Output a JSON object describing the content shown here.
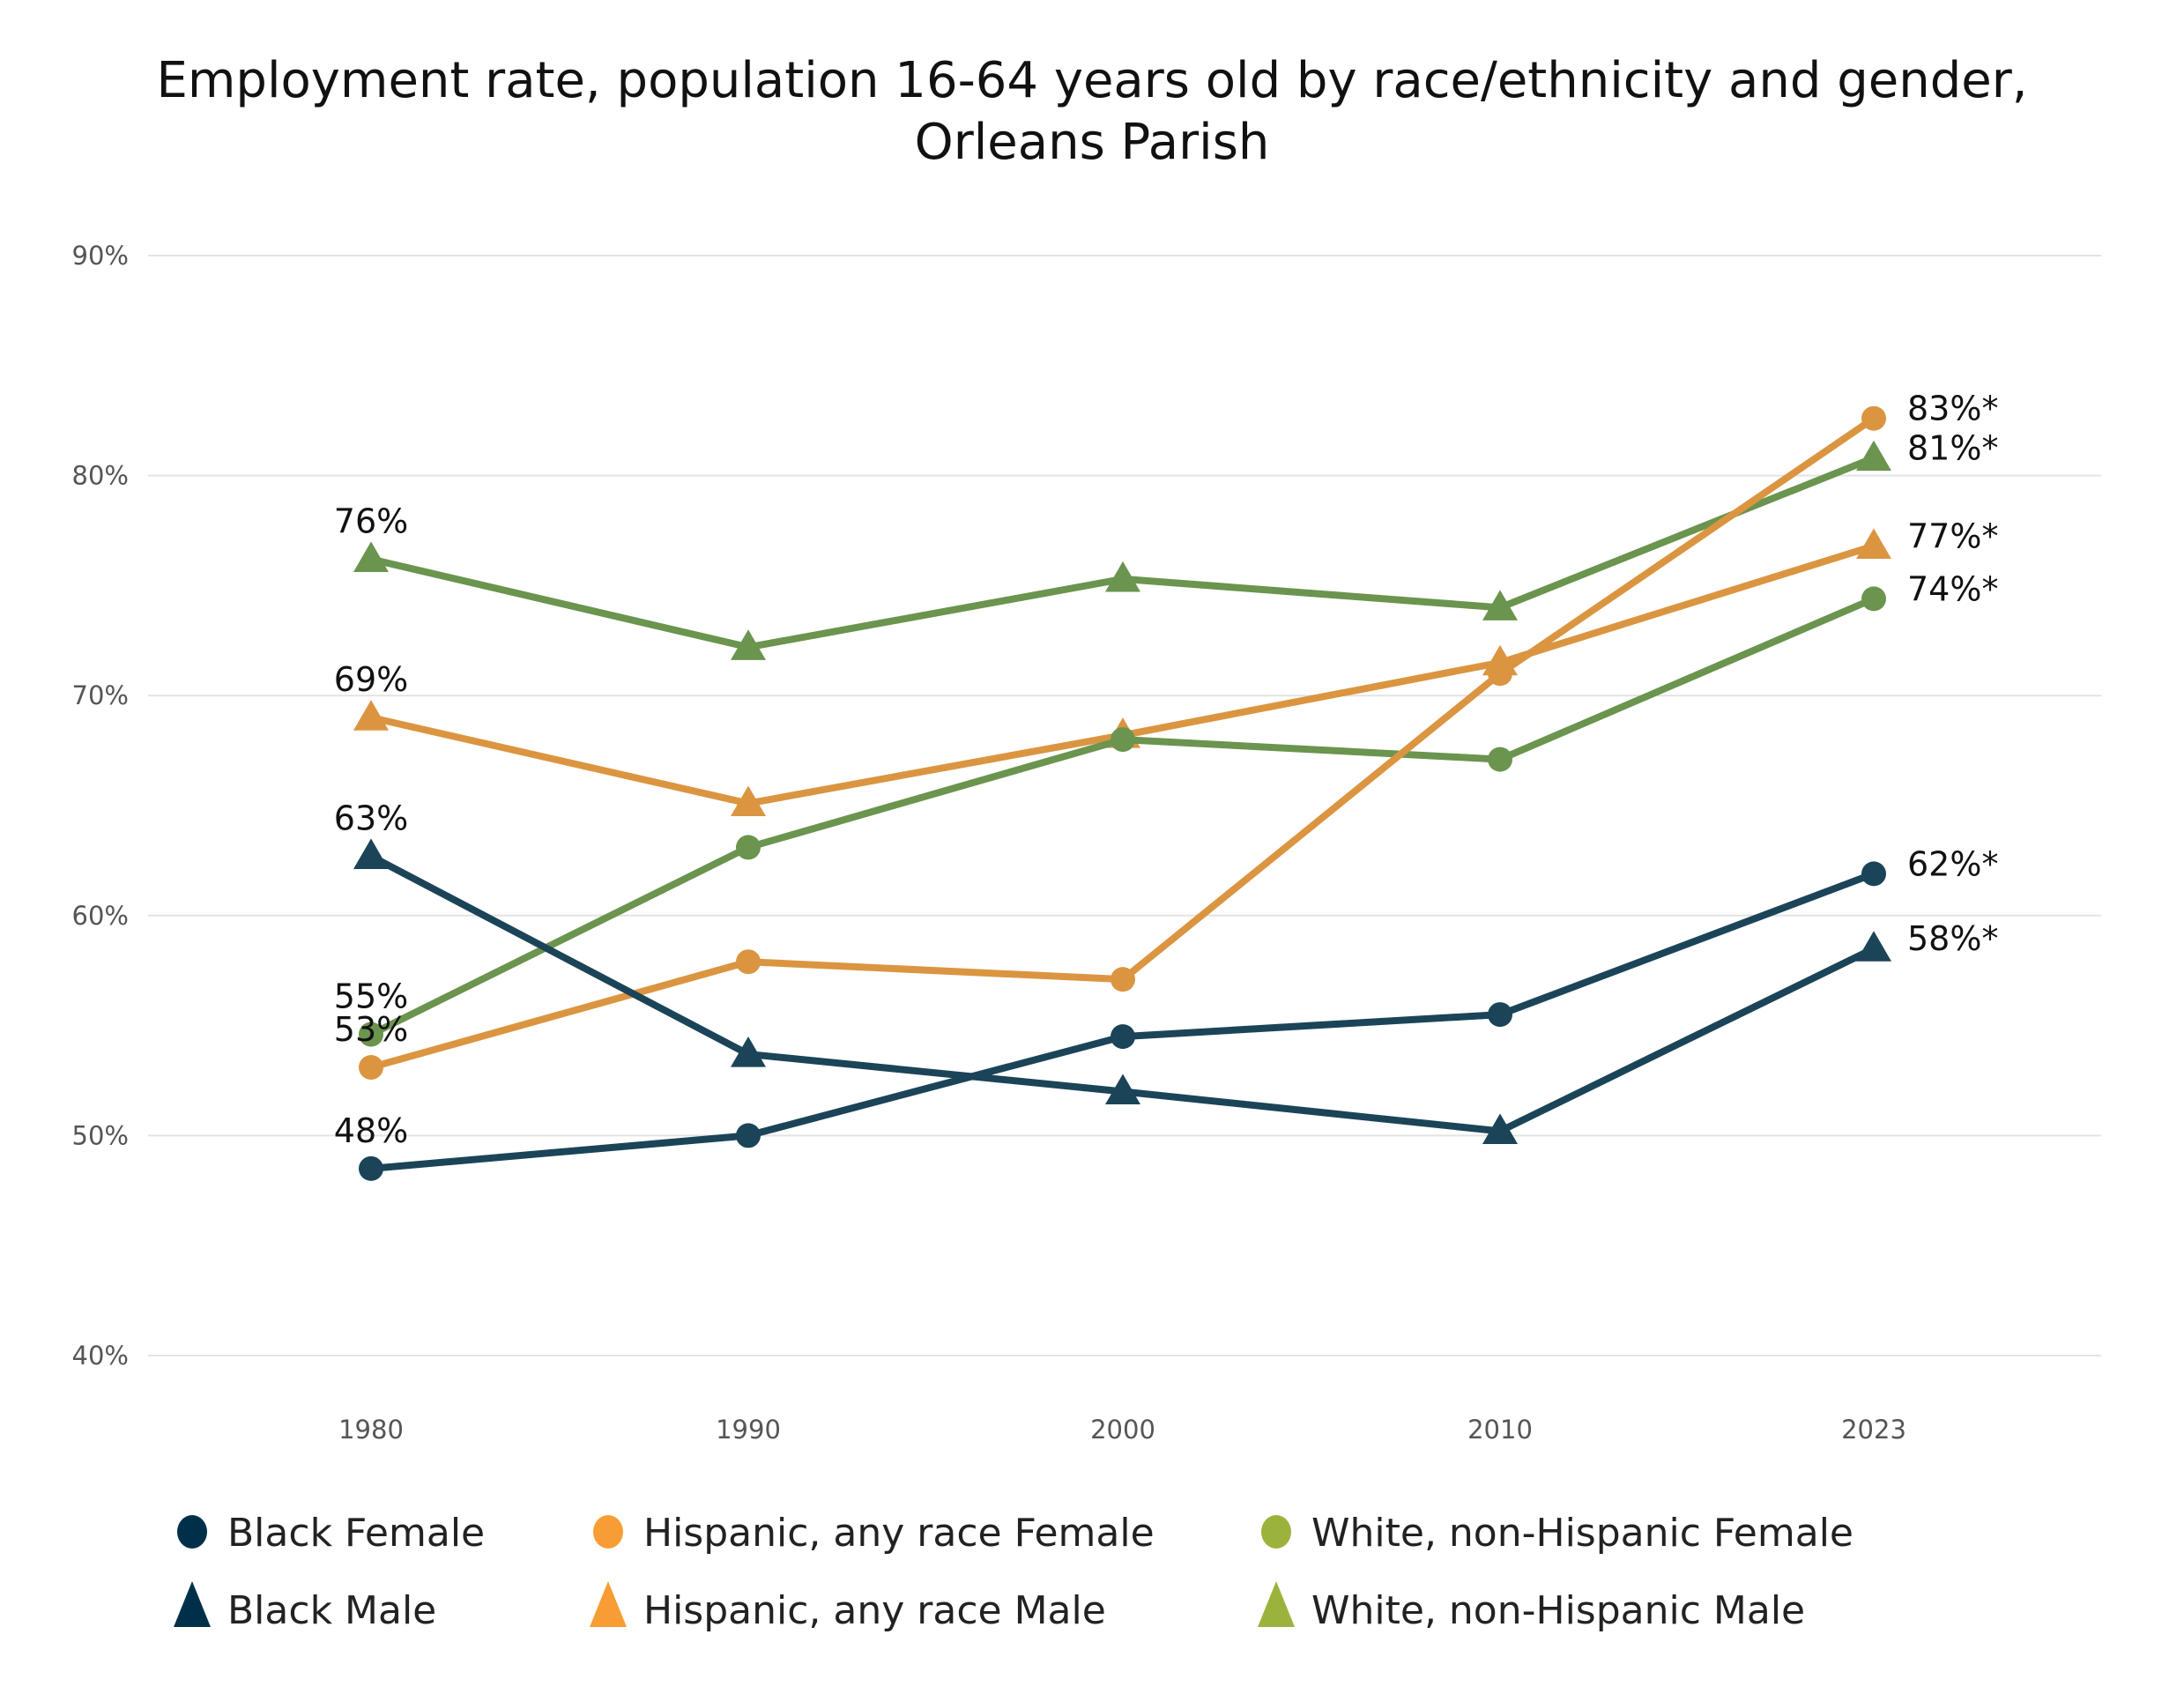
{
  "chart_data": {
    "type": "line",
    "title": "Employment rate, population 16-64 years old by race/ethnicity and gender,",
    "subtitle": "Orleans  Parish",
    "xlabel": "",
    "ylabel": "",
    "x": [
      "1980",
      "1990",
      "2000",
      "2010",
      "2023"
    ],
    "ylim": [
      40,
      90
    ],
    "yticks": [
      40,
      50,
      60,
      70,
      80,
      90
    ],
    "ytick_labels": [
      "40%",
      "50%",
      "60%",
      "70%",
      "80%",
      "90%"
    ],
    "grid": true,
    "legend_position": "bottom",
    "series": [
      {
        "name": "White, non-Hispanic Male",
        "marker": "triangle",
        "color": "#6b944f",
        "legend_color": "#9bb33c",
        "values": [
          76.2,
          72.2,
          75.3,
          74.0,
          80.8
        ],
        "labels": {
          "0": "76%",
          "4": "81%*"
        }
      },
      {
        "name": "Hispanic, any race Male",
        "marker": "triangle",
        "color": "#db9541",
        "legend_color": "#f89d34",
        "values": [
          69.0,
          65.1,
          68.2,
          71.5,
          76.8
        ],
        "labels": {
          "0": "69%",
          "4": "77%*"
        }
      },
      {
        "name": "White, non-Hispanic Female",
        "marker": "circle",
        "color": "#6b944f",
        "legend_color": "#9bb33c",
        "values": [
          54.6,
          63.1,
          68.0,
          67.1,
          74.4
        ],
        "labels": {
          "0": "55%",
          "4": "74%*"
        }
      },
      {
        "name": "Hispanic, any race Female",
        "marker": "circle",
        "color": "#db9541",
        "legend_color": "#f89d34",
        "values": [
          53.1,
          57.9,
          57.1,
          71.0,
          82.6
        ],
        "labels": {
          "0": "53%",
          "4": "83%*"
        }
      },
      {
        "name": "Black Male",
        "marker": "triangle",
        "color": "#1b4458",
        "legend_color": "#003049",
        "values": [
          62.7,
          53.7,
          52.0,
          50.2,
          58.5
        ],
        "labels": {
          "0": "63%",
          "4": "58%*"
        }
      },
      {
        "name": "Black Female",
        "marker": "circle",
        "color": "#1b4458",
        "legend_color": "#003049",
        "values": [
          48.5,
          50.0,
          54.5,
          55.5,
          61.9
        ],
        "labels": {
          "0": "48%",
          "4": "62%*"
        }
      }
    ],
    "legend": [
      {
        "label": "Black Female",
        "marker": "circle",
        "color": "#003049"
      },
      {
        "label": "Hispanic, any race Female",
        "marker": "circle",
        "color": "#f89d34"
      },
      {
        "label": "White, non-Hispanic Female",
        "marker": "circle",
        "color": "#9bb33c"
      },
      {
        "label": "Black Male",
        "marker": "triangle",
        "color": "#003049"
      },
      {
        "label": "Hispanic, any race Male",
        "marker": "triangle",
        "color": "#f89d34"
      },
      {
        "label": "White, non-Hispanic Male",
        "marker": "triangle",
        "color": "#9bb33c"
      }
    ]
  }
}
